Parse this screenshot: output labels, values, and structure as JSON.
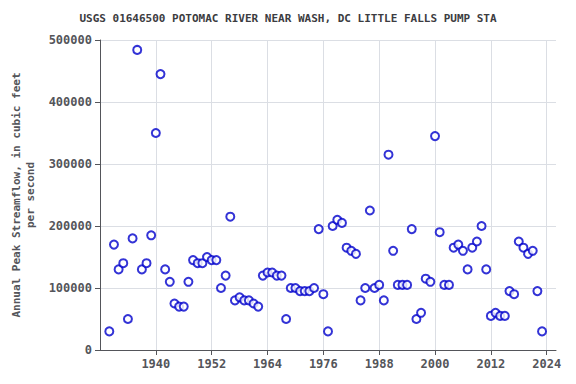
{
  "chart_data": {
    "type": "scatter",
    "title": "USGS 01646500 POTOMAC RIVER NEAR WASH, DC LITTLE FALLS PUMP STA",
    "ylabel": "Annual Peak Streamflow, in cubic feet\nper second",
    "x": [
      1930,
      1931,
      1932,
      1933,
      1934,
      1935,
      1936,
      1937,
      1938,
      1939,
      1940,
      1941,
      1942,
      1943,
      1944,
      1945,
      1946,
      1947,
      1948,
      1949,
      1950,
      1951,
      1952,
      1953,
      1954,
      1955,
      1956,
      1957,
      1958,
      1959,
      1960,
      1961,
      1962,
      1963,
      1964,
      1965,
      1966,
      1967,
      1968,
      1969,
      1970,
      1971,
      1972,
      1973,
      1974,
      1975,
      1976,
      1977,
      1978,
      1979,
      1980,
      1981,
      1982,
      1983,
      1984,
      1985,
      1986,
      1987,
      1988,
      1989,
      1990,
      1991,
      1992,
      1993,
      1994,
      1995,
      1996,
      1997,
      1998,
      1999,
      2000,
      2001,
      2002,
      2003,
      2004,
      2005,
      2006,
      2007,
      2008,
      2009,
      2010,
      2011,
      2012,
      2013,
      2014,
      2015,
      2016,
      2017,
      2018,
      2019,
      2020,
      2021,
      2022,
      2023
    ],
    "values": [
      30000,
      170000,
      130000,
      140000,
      50000,
      180000,
      484000,
      130000,
      140000,
      185000,
      350000,
      445000,
      130000,
      110000,
      75000,
      70000,
      70000,
      110000,
      145000,
      140000,
      140000,
      150000,
      145000,
      145000,
      100000,
      120000,
      215000,
      80000,
      85000,
      80000,
      80000,
      75000,
      70000,
      120000,
      125000,
      125000,
      120000,
      120000,
      50000,
      100000,
      100000,
      95000,
      95000,
      95000,
      100000,
      195000,
      90000,
      30000,
      200000,
      210000,
      205000,
      165000,
      160000,
      155000,
      80000,
      100000,
      225000,
      100000,
      105000,
      80000,
      315000,
      160000,
      105000,
      105000,
      105000,
      195000,
      50000,
      60000,
      115000,
      110000,
      345000,
      190000,
      105000,
      105000,
      165000,
      170000,
      160000,
      130000,
      165000,
      175000,
      200000,
      130000,
      55000,
      60000,
      55000,
      55000,
      95000,
      90000,
      175000,
      165000,
      155000,
      160000,
      95000,
      30000
    ],
    "color": "#0000CC",
    "marker": "emptyCircle",
    "xlim": [
      1928,
      2026
    ],
    "xticks": [
      1940,
      1952,
      1964,
      1976,
      1988,
      2000,
      2012,
      2024
    ],
    "ylim": [
      0,
      500000
    ],
    "yticks": [
      0,
      100000,
      200000,
      300000,
      400000,
      500000
    ],
    "grid": true
  }
}
